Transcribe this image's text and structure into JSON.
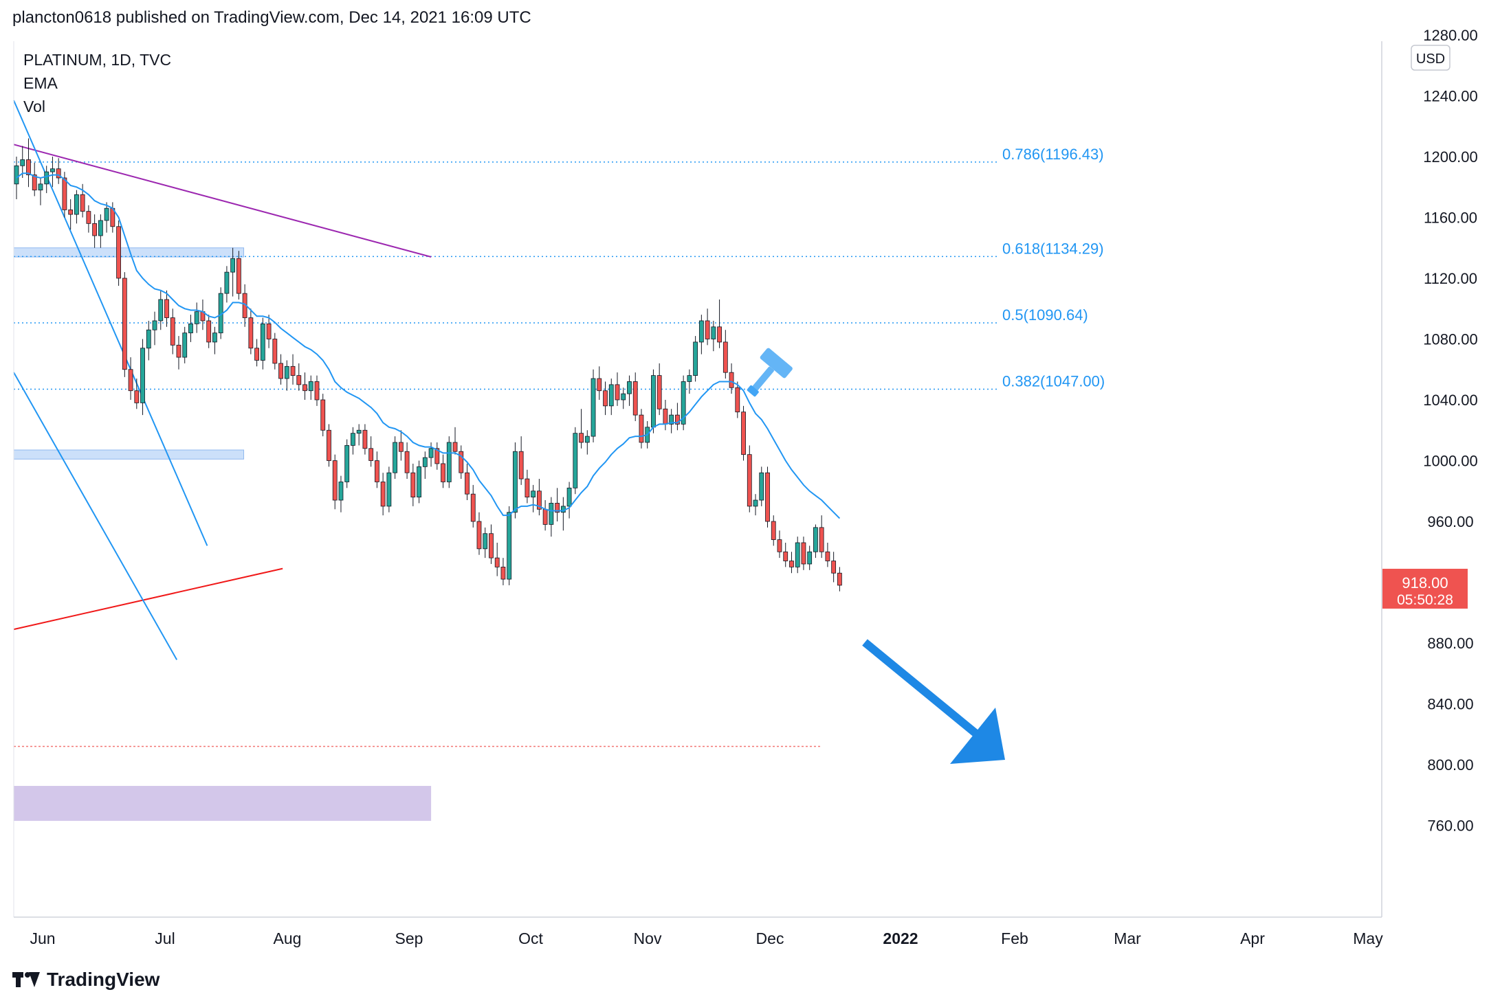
{
  "header": "plancton0618 published on TradingView.com, Dec 14, 2021 16:09 UTC",
  "legend": {
    "symbol": "PLATINUM, 1D, TVC",
    "indicator1": "EMA",
    "indicator2": "Vol"
  },
  "currency": "USD",
  "price_label": {
    "price": "918.00",
    "countdown": "05:50:28"
  },
  "footer": {
    "brand": "TradingView"
  },
  "colors": {
    "up": "#26a69a",
    "down": "#ef5350",
    "ema": "#2196f3",
    "channel": "#2196f3",
    "purple_line": "#9c27b0",
    "support": "#f01818",
    "fib": "#2196f3",
    "zone": "#bbd6f8",
    "purple_zone": "#d1c4e9",
    "arrow": "#1e88e5",
    "price_label_bg": "#ef5350"
  },
  "chart_data": {
    "type": "candlestick",
    "title": "PLATINUM, 1D, TVC",
    "ylabel": "USD",
    "ylim": [
      742,
      1300
    ],
    "yticks": [
      1280,
      1240,
      1200,
      1160,
      1120,
      1080,
      1040,
      1000,
      960,
      920,
      880,
      840,
      800,
      760
    ],
    "y_tick_labels": [
      "1280.00",
      "1240.00",
      "1200.00",
      "1160.00",
      "1120.00",
      "1080.00",
      "1040.00",
      "1000.00",
      "960.00",
      "",
      "880.00",
      "840.00",
      "800.00",
      "760.00"
    ],
    "x_tick_labels": [
      "Jun",
      "Jul",
      "Aug",
      "Sep",
      "Oct",
      "Nov",
      "Dec",
      "2022",
      "Feb",
      "Mar",
      "Apr",
      "May"
    ],
    "last_price": 918.0,
    "fib_levels": [
      {
        "ratio": "0.786",
        "price": 1196.43,
        "label": "0.786(1196.43)"
      },
      {
        "ratio": "0.618",
        "price": 1134.29,
        "label": "0.618(1134.29)"
      },
      {
        "ratio": "0.5",
        "price": 1090.64,
        "label": "0.5(1090.64)"
      },
      {
        "ratio": "0.382",
        "price": 1047.0,
        "label": "0.382(1047.00)"
      }
    ],
    "zones": [
      {
        "name": "resistance-zone",
        "from": 1134,
        "to": 1140,
        "start": "2021-05-25",
        "end": "2021-11-30"
      },
      {
        "name": "support-zone",
        "from": 1001,
        "to": 1007,
        "start": "2021-05-25",
        "end": "2021-11-30"
      },
      {
        "name": "purple-zone",
        "from": 763,
        "to": 786,
        "start": "2021-05-25",
        "end": "2022-05-03"
      }
    ],
    "trend_lines": [
      {
        "name": "purple-downtrend-line",
        "points": [
          [
            "2021-05-25",
            1208
          ],
          [
            "2022-05-03",
            1134
          ]
        ]
      },
      {
        "name": "red-support-line",
        "points": [
          [
            "2021-05-25",
            889
          ],
          [
            "2022-01-01",
            929
          ]
        ]
      },
      {
        "name": "channel-upper-line",
        "points": [
          [
            "2021-05-25",
            1237
          ],
          [
            "2021-10-31",
            944
          ]
        ]
      },
      {
        "name": "channel-lower-line",
        "points": [
          [
            "2021-05-25",
            1058
          ],
          [
            "2021-10-06",
            869
          ]
        ]
      }
    ],
    "dashed_price_line": 812,
    "candles_ohlc": [
      [
        1182,
        1200,
        1172,
        1194
      ],
      [
        1194,
        1207,
        1186,
        1198
      ],
      [
        1198,
        1212,
        1180,
        1188
      ],
      [
        1188,
        1196,
        1174,
        1178
      ],
      [
        1178,
        1186,
        1168,
        1182
      ],
      [
        1182,
        1194,
        1176,
        1190
      ],
      [
        1190,
        1200,
        1180,
        1192
      ],
      [
        1192,
        1199,
        1182,
        1186
      ],
      [
        1186,
        1190,
        1160,
        1165
      ],
      [
        1165,
        1172,
        1152,
        1162
      ],
      [
        1162,
        1178,
        1156,
        1175
      ],
      [
        1175,
        1182,
        1160,
        1164
      ],
      [
        1164,
        1168,
        1150,
        1156
      ],
      [
        1156,
        1162,
        1140,
        1148
      ],
      [
        1148,
        1162,
        1140,
        1158
      ],
      [
        1158,
        1170,
        1150,
        1166
      ],
      [
        1166,
        1170,
        1150,
        1154
      ],
      [
        1154,
        1158,
        1115,
        1120
      ],
      [
        1120,
        1124,
        1055,
        1060
      ],
      [
        1060,
        1068,
        1040,
        1046
      ],
      [
        1046,
        1054,
        1034,
        1038
      ],
      [
        1038,
        1080,
        1030,
        1074
      ],
      [
        1074,
        1092,
        1066,
        1086
      ],
      [
        1086,
        1098,
        1076,
        1092
      ],
      [
        1092,
        1112,
        1086,
        1106
      ],
      [
        1106,
        1112,
        1088,
        1094
      ],
      [
        1094,
        1100,
        1070,
        1076
      ],
      [
        1076,
        1082,
        1060,
        1068
      ],
      [
        1068,
        1088,
        1064,
        1084
      ],
      [
        1084,
        1096,
        1078,
        1090
      ],
      [
        1090,
        1104,
        1084,
        1098
      ],
      [
        1098,
        1106,
        1086,
        1092
      ],
      [
        1092,
        1096,
        1074,
        1078
      ],
      [
        1078,
        1088,
        1070,
        1084
      ],
      [
        1084,
        1114,
        1080,
        1110
      ],
      [
        1110,
        1128,
        1104,
        1124
      ],
      [
        1124,
        1140,
        1108,
        1133
      ],
      [
        1133,
        1138,
        1106,
        1110
      ],
      [
        1110,
        1116,
        1088,
        1094
      ],
      [
        1094,
        1100,
        1070,
        1074
      ],
      [
        1074,
        1080,
        1062,
        1066
      ],
      [
        1066,
        1094,
        1060,
        1090
      ],
      [
        1090,
        1096,
        1074,
        1080
      ],
      [
        1080,
        1084,
        1060,
        1064
      ],
      [
        1064,
        1070,
        1050,
        1054
      ],
      [
        1054,
        1066,
        1046,
        1062
      ],
      [
        1062,
        1070,
        1050,
        1056
      ],
      [
        1056,
        1064,
        1046,
        1050
      ],
      [
        1050,
        1058,
        1040,
        1046
      ],
      [
        1046,
        1056,
        1040,
        1052
      ],
      [
        1052,
        1056,
        1036,
        1040
      ],
      [
        1040,
        1044,
        1016,
        1020
      ],
      [
        1020,
        1024,
        996,
        1000
      ],
      [
        1000,
        1004,
        968,
        974
      ],
      [
        974,
        990,
        966,
        986
      ],
      [
        986,
        1014,
        982,
        1010
      ],
      [
        1010,
        1022,
        1004,
        1018
      ],
      [
        1018,
        1024,
        1010,
        1020
      ],
      [
        1020,
        1024,
        1004,
        1008
      ],
      [
        1008,
        1016,
        996,
        1000
      ],
      [
        1000,
        1006,
        982,
        986
      ],
      [
        986,
        992,
        964,
        970
      ],
      [
        970,
        996,
        966,
        992
      ],
      [
        992,
        1016,
        988,
        1012
      ],
      [
        1012,
        1020,
        1000,
        1006
      ],
      [
        1006,
        1012,
        988,
        992
      ],
      [
        992,
        998,
        970,
        976
      ],
      [
        976,
        1000,
        972,
        996
      ],
      [
        996,
        1006,
        988,
        1002
      ],
      [
        1002,
        1012,
        996,
        1008
      ],
      [
        1008,
        1012,
        994,
        998
      ],
      [
        998,
        1004,
        982,
        986
      ],
      [
        986,
        1016,
        982,
        1012
      ],
      [
        1012,
        1022,
        1004,
        1006
      ],
      [
        1006,
        1010,
        988,
        992
      ],
      [
        992,
        998,
        974,
        978
      ],
      [
        978,
        984,
        956,
        960
      ],
      [
        960,
        966,
        938,
        942
      ],
      [
        942,
        956,
        936,
        952
      ],
      [
        952,
        958,
        932,
        936
      ],
      [
        936,
        946,
        924,
        930
      ],
      [
        930,
        936,
        918,
        922
      ],
      [
        922,
        970,
        918,
        966
      ],
      [
        966,
        1012,
        962,
        1006
      ],
      [
        1006,
        1016,
        984,
        988
      ],
      [
        988,
        994,
        972,
        976
      ],
      [
        976,
        984,
        966,
        980
      ],
      [
        980,
        988,
        964,
        968
      ],
      [
        968,
        974,
        954,
        958
      ],
      [
        958,
        976,
        950,
        972
      ],
      [
        972,
        982,
        960,
        966
      ],
      [
        966,
        976,
        954,
        970
      ],
      [
        970,
        986,
        962,
        982
      ],
      [
        982,
        1022,
        978,
        1018
      ],
      [
        1018,
        1034,
        1008,
        1012
      ],
      [
        1012,
        1020,
        1004,
        1016
      ],
      [
        1016,
        1060,
        1012,
        1054
      ],
      [
        1054,
        1062,
        1040,
        1046
      ],
      [
        1046,
        1052,
        1030,
        1036
      ],
      [
        1036,
        1054,
        1030,
        1050
      ],
      [
        1050,
        1058,
        1036,
        1040
      ],
      [
        1040,
        1048,
        1034,
        1044
      ],
      [
        1044,
        1056,
        1036,
        1052
      ],
      [
        1052,
        1058,
        1026,
        1030
      ],
      [
        1030,
        1034,
        1008,
        1012
      ],
      [
        1012,
        1026,
        1008,
        1022
      ],
      [
        1022,
        1060,
        1018,
        1056
      ],
      [
        1056,
        1064,
        1030,
        1034
      ],
      [
        1034,
        1040,
        1020,
        1024
      ],
      [
        1024,
        1034,
        1018,
        1030
      ],
      [
        1030,
        1038,
        1020,
        1024
      ],
      [
        1024,
        1056,
        1020,
        1052
      ],
      [
        1052,
        1060,
        1044,
        1056
      ],
      [
        1056,
        1082,
        1052,
        1078
      ],
      [
        1078,
        1096,
        1070,
        1092
      ],
      [
        1092,
        1100,
        1076,
        1080
      ],
      [
        1080,
        1092,
        1072,
        1088
      ],
      [
        1088,
        1106,
        1074,
        1078
      ],
      [
        1078,
        1086,
        1054,
        1058
      ],
      [
        1058,
        1064,
        1044,
        1048
      ],
      [
        1048,
        1052,
        1028,
        1032
      ],
      [
        1032,
        1036,
        1000,
        1004
      ],
      [
        1004,
        1010,
        966,
        970
      ],
      [
        970,
        978,
        964,
        974
      ],
      [
        974,
        996,
        970,
        992
      ],
      [
        992,
        996,
        956,
        960
      ],
      [
        960,
        964,
        944,
        948
      ],
      [
        948,
        954,
        936,
        940
      ],
      [
        940,
        946,
        930,
        934
      ],
      [
        934,
        940,
        926,
        930
      ],
      [
        930,
        950,
        926,
        946
      ],
      [
        946,
        950,
        928,
        932
      ],
      [
        932,
        944,
        928,
        940
      ],
      [
        940,
        958,
        936,
        956
      ],
      [
        956,
        964,
        936,
        940
      ],
      [
        940,
        946,
        930,
        934
      ],
      [
        934,
        940,
        920,
        926
      ],
      [
        926,
        930,
        914,
        918
      ]
    ],
    "ema_line": [
      1186,
      1189,
      1189,
      1187,
      1186,
      1187,
      1188,
      1188,
      1185,
      1181,
      1180,
      1178,
      1175,
      1171,
      1169,
      1168,
      1166,
      1160,
      1148,
      1136,
      1125,
      1120,
      1116,
      1113,
      1112,
      1110,
      1106,
      1102,
      1100,
      1099,
      1099,
      1098,
      1095,
      1094,
      1096,
      1099,
      1104,
      1104,
      1103,
      1099,
      1095,
      1095,
      1094,
      1091,
      1087,
      1084,
      1081,
      1078,
      1075,
      1073,
      1070,
      1066,
      1060,
      1052,
      1048,
      1045,
      1043,
      1041,
      1038,
      1035,
      1031,
      1025,
      1022,
      1021,
      1019,
      1016,
      1012,
      1010,
      1009,
      1009,
      1007,
      1005,
      1005,
      1005,
      1003,
      999,
      994,
      987,
      982,
      977,
      970,
      964,
      964,
      968,
      970,
      970,
      971,
      970,
      968,
      967,
      967,
      967,
      969,
      974,
      979,
      983,
      990,
      995,
      999,
      1004,
      1008,
      1011,
      1015,
      1016,
      1016,
      1017,
      1022,
      1024,
      1024,
      1025,
      1025,
      1028,
      1032,
      1037,
      1042,
      1046,
      1050,
      1052,
      1052,
      1052,
      1050,
      1046,
      1038,
      1031,
      1027,
      1021,
      1014,
      1007,
      1000,
      994,
      989,
      984,
      980,
      977,
      974,
      970,
      966,
      962
    ]
  }
}
